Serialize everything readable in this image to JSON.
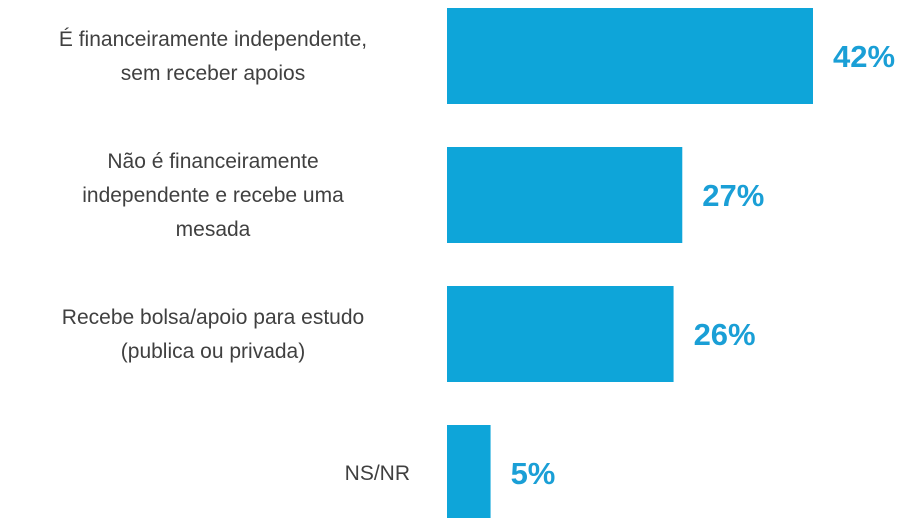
{
  "chart_data": {
    "type": "barh",
    "categories": [
      "É financeiramente independente,\nsem receber apoios",
      "Não é financeiramente\nindependente e recebe uma\nmesada",
      "Recebe bolsa/apoio para estudo\n(publica ou privada)",
      "NS/NR"
    ],
    "values": [
      42,
      27,
      26,
      5
    ],
    "value_labels": [
      "42%",
      "27%",
      "26%",
      "5%"
    ],
    "color": "#0ea5d9"
  }
}
